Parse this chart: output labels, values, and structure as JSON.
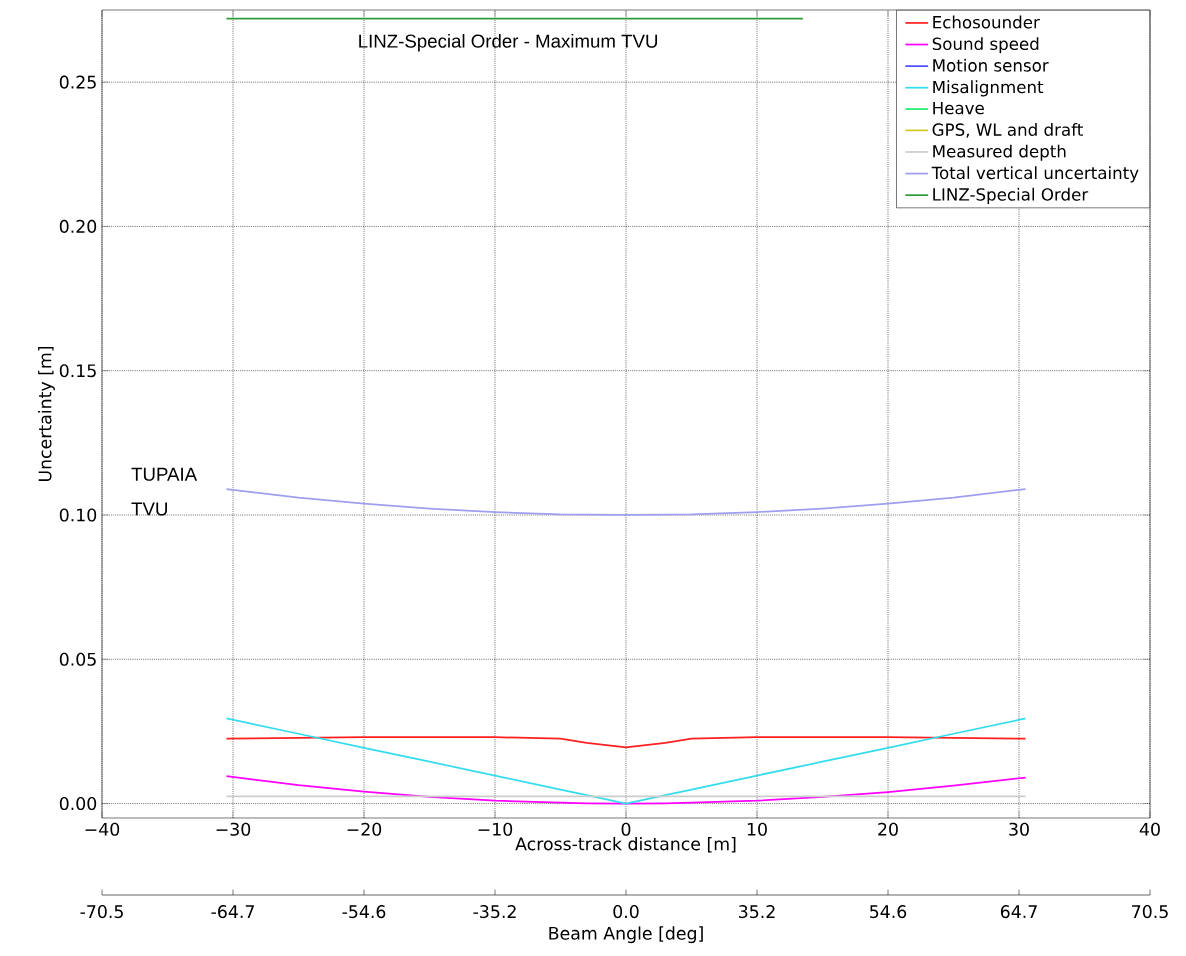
{
  "chart_data": {
    "type": "line",
    "xlabel": "Across-track distance [m]",
    "ylabel": "Uncertainty [m]",
    "xlim": [
      -40,
      40
    ],
    "ylim": [
      -0.005,
      0.275
    ],
    "xticks": [
      {
        "value": -40,
        "label": "−40"
      },
      {
        "value": -30,
        "label": "−30"
      },
      {
        "value": -20,
        "label": "−20"
      },
      {
        "value": -10,
        "label": "−10"
      },
      0,
      10,
      20,
      30,
      40
    ],
    "yticks": [
      {
        "value": 0,
        "label": "0.00"
      },
      {
        "value": 0.05,
        "label": "0.05"
      },
      {
        "value": 0.1,
        "label": "0.10"
      },
      {
        "value": 0.15,
        "label": "0.15"
      },
      {
        "value": 0.2,
        "label": "0.20"
      },
      {
        "value": 0.25,
        "label": "0.25"
      }
    ],
    "grid": true,
    "legend": "top right",
    "x": [
      -30.5,
      -25,
      -20,
      -15,
      -10,
      -5,
      -3,
      0,
      3,
      5,
      10,
      15,
      20,
      25,
      30.5
    ],
    "series": [
      {
        "name": "Echosounder",
        "color": "#ff2020",
        "values": [
          0.0225,
          0.0228,
          0.023,
          0.023,
          0.023,
          0.0225,
          0.021,
          0.0195,
          0.021,
          0.0225,
          0.023,
          0.023,
          0.023,
          0.0228,
          0.0225
        ]
      },
      {
        "name": "Sound speed",
        "color": "#ff00ff",
        "values": [
          0.0095,
          0.0064,
          0.0041,
          0.0023,
          0.001,
          0.0003,
          0.0001,
          0.0,
          0.0001,
          0.0003,
          0.001,
          0.0023,
          0.004,
          0.0062,
          0.009
        ]
      },
      {
        "name": "Motion sensor",
        "color": "#5050ff",
        "values": [
          null,
          null,
          null,
          null,
          null,
          null,
          null,
          null,
          null,
          null,
          null,
          null,
          null,
          null,
          null
        ]
      },
      {
        "name": "Misalignment",
        "color": "#33ddee",
        "values": [
          0.0295,
          0.0242,
          0.0193,
          0.0145,
          0.0097,
          0.0048,
          0.0029,
          0.0,
          0.0029,
          0.0048,
          0.0097,
          0.0145,
          0.0193,
          0.0242,
          0.0295
        ]
      },
      {
        "name": "Heave",
        "color": "#20ee70",
        "values": [
          null,
          null,
          null,
          null,
          null,
          null,
          null,
          null,
          null,
          null,
          null,
          null,
          null,
          null,
          null
        ]
      },
      {
        "name": "GPS, WL and draft",
        "color": "#cccc22",
        "values": [
          null,
          null,
          null,
          null,
          null,
          null,
          null,
          null,
          null,
          null,
          null,
          null,
          null,
          null,
          null
        ]
      },
      {
        "name": "Measured depth",
        "color": "#cccccc",
        "x": [
          -30.5,
          30.5
        ],
        "values": [
          0.0025,
          0.0025
        ]
      },
      {
        "name": "Total vertical uncertainty",
        "color": "#9f9ff0",
        "values": [
          0.109,
          0.106,
          0.1039,
          0.1022,
          0.101,
          0.1002,
          0.1001,
          0.1,
          0.1001,
          0.1002,
          0.101,
          0.1022,
          0.1039,
          0.106,
          0.109
        ]
      },
      {
        "name": "LINZ-Special Order",
        "color": "#2e9a3a",
        "x": [
          -30.5,
          13.5
        ],
        "values": [
          0.272,
          0.272
        ]
      }
    ],
    "annotations": [
      {
        "text": "LINZ-Special Order - Maximum TVU",
        "x": -9,
        "y": 0.272
      },
      {
        "text": "TUPAIA TVU",
        "x": -30.5,
        "y": 0.109
      },
      "-70.5",
      "-64.7",
      "-54.6",
      "-35.2",
      "0.0",
      "35.2",
      "54.6",
      "64.7",
      "70.5",
      "Beam Angle [deg]"
    ]
  }
}
